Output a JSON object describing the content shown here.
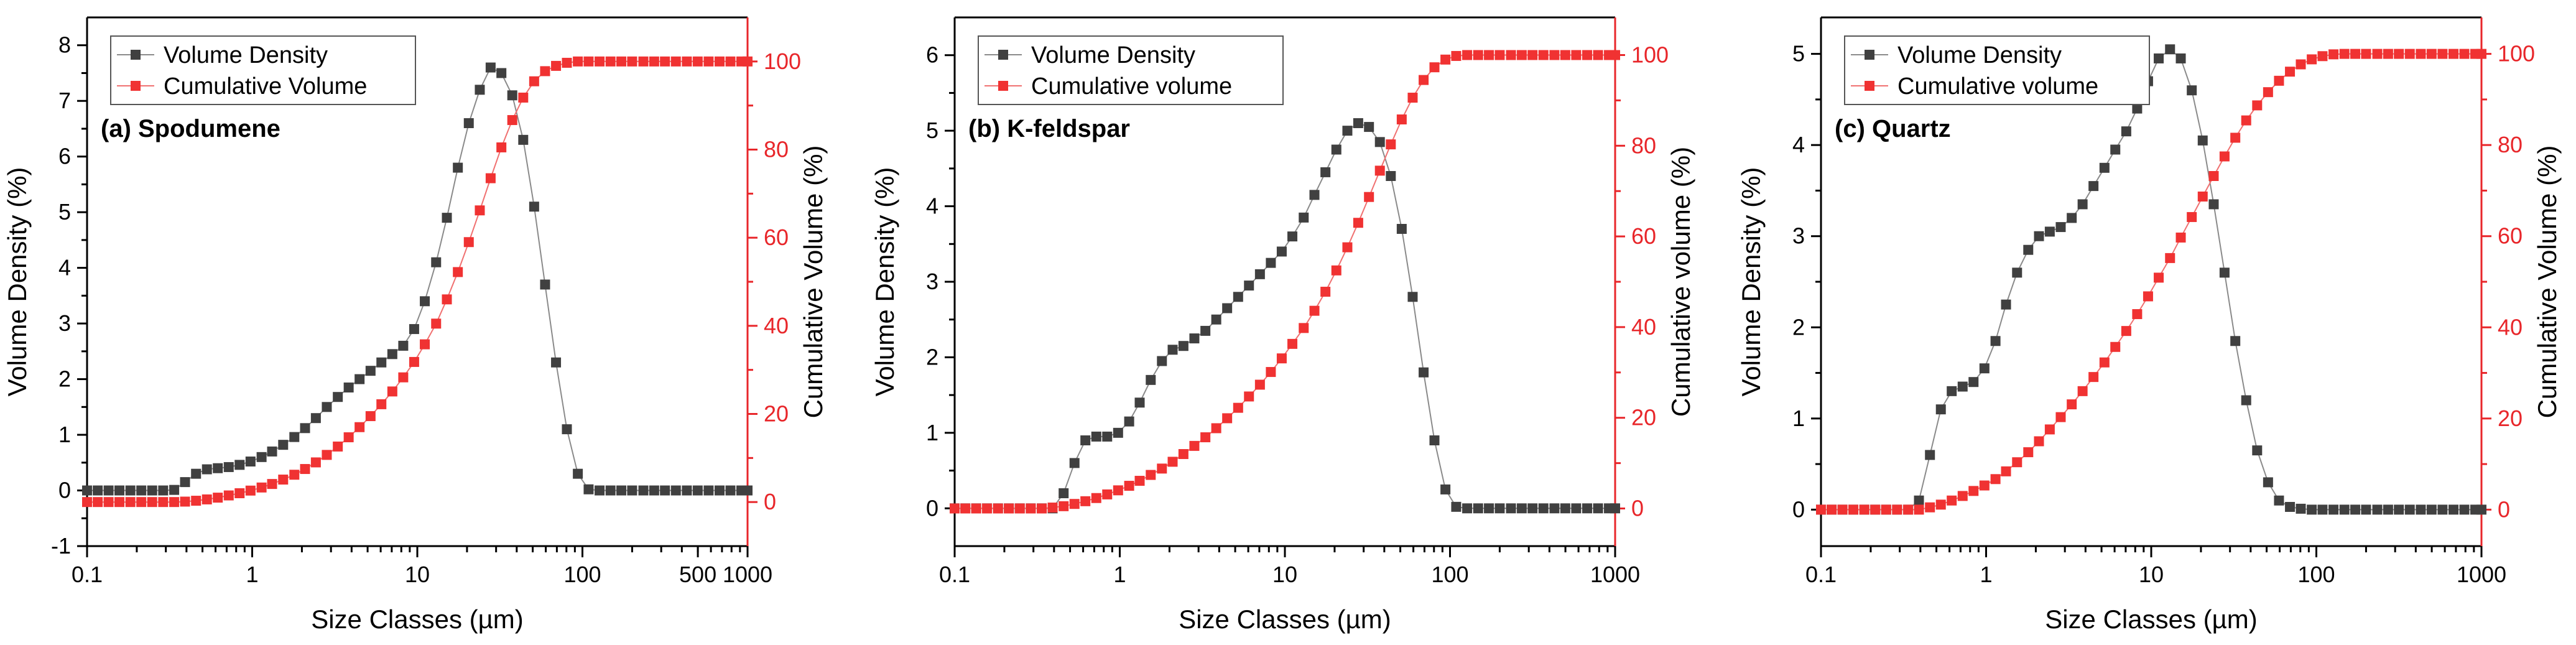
{
  "colors": {
    "density": "#404040",
    "cumulative": "#f03232",
    "axis": "#000000",
    "right_axis": "#e8262a"
  },
  "chart_data": [
    {
      "type": "scatter",
      "panel_label": "(a) Spodumene",
      "xlabel": "Size Classes (µm)",
      "ylabel": "Volume Density (%)",
      "y2label": "Cumulative Volume (%)",
      "xscale": "log",
      "xlim": [
        0.1,
        1000
      ],
      "ylim": [
        -1,
        8.5
      ],
      "y2lim": [
        -10,
        110
      ],
      "xticks": [
        0.1,
        1,
        10,
        100,
        500,
        1000
      ],
      "xtick_labels": [
        "0.1",
        "1",
        "10",
        "100",
        "500",
        "1000"
      ],
      "yticks": [
        -1,
        0,
        1,
        2,
        3,
        4,
        5,
        6,
        7,
        8
      ],
      "ytick_labels": [
        "-1",
        "0",
        "1",
        "2",
        "3",
        "4",
        "5",
        "6",
        "7",
        "8"
      ],
      "y2ticks": [
        0,
        20,
        40,
        60,
        80,
        100
      ],
      "y2tick_labels": [
        "0",
        "20",
        "40",
        "60",
        "80",
        "100"
      ],
      "legend": [
        "Volume Density",
        "Cumulative Volume"
      ],
      "series": [
        {
          "name": "Volume Density",
          "axis": "left",
          "x": [
            0.1,
            0.116,
            0.135,
            0.157,
            0.183,
            0.213,
            0.248,
            0.289,
            0.337,
            0.392,
            0.457,
            0.532,
            0.619,
            0.721,
            0.839,
            0.977,
            1.14,
            1.32,
            1.54,
            1.8,
            2.09,
            2.43,
            2.83,
            3.3,
            3.84,
            4.47,
            5.21,
            6.06,
            7.06,
            8.22,
            9.57,
            11.1,
            13,
            15.1,
            17.6,
            20.5,
            23.9,
            27.8,
            32.3,
            37.6,
            43.8,
            51,
            59.4,
            69.2,
            80.5,
            93.8,
            109,
            127,
            148,
            172,
            200,
            234,
            272,
            316,
            368,
            429,
            499,
            581,
            677,
            788,
            917,
            1000
          ],
          "values": [
            0,
            0,
            0,
            0,
            0,
            0,
            0,
            0,
            0.01,
            0.15,
            0.3,
            0.38,
            0.4,
            0.42,
            0.46,
            0.52,
            0.6,
            0.7,
            0.82,
            0.96,
            1.12,
            1.3,
            1.5,
            1.68,
            1.85,
            2,
            2.15,
            2.3,
            2.45,
            2.6,
            2.9,
            3.4,
            4.1,
            4.9,
            5.8,
            6.6,
            7.2,
            7.6,
            7.5,
            7.1,
            6.3,
            5.1,
            3.7,
            2.3,
            1.1,
            0.3,
            0.02,
            0,
            0,
            0,
            0,
            0,
            0,
            0,
            0,
            0,
            0,
            0,
            0,
            0,
            0,
            0
          ]
        },
        {
          "name": "Cumulative Volume",
          "axis": "right",
          "x": [
            0.1,
            0.116,
            0.135,
            0.157,
            0.183,
            0.213,
            0.248,
            0.289,
            0.337,
            0.392,
            0.457,
            0.532,
            0.619,
            0.721,
            0.839,
            0.977,
            1.14,
            1.32,
            1.54,
            1.8,
            2.09,
            2.43,
            2.83,
            3.3,
            3.84,
            4.47,
            5.21,
            6.06,
            7.06,
            8.22,
            9.57,
            11.1,
            13,
            15.1,
            17.6,
            20.5,
            23.9,
            27.8,
            32.3,
            37.6,
            43.8,
            51,
            59.4,
            69.2,
            80.5,
            93.8,
            109,
            127,
            148,
            172,
            200,
            234,
            272,
            316,
            368,
            429,
            499,
            581,
            677,
            788,
            917,
            1000
          ],
          "values": [
            0,
            0,
            0,
            0,
            0,
            0,
            0,
            0,
            0,
            0.1,
            0.3,
            0.6,
            1,
            1.5,
            2,
            2.6,
            3.3,
            4.1,
            5.1,
            6.2,
            7.5,
            9,
            10.7,
            12.6,
            14.7,
            17,
            19.5,
            22.2,
            25.1,
            28.3,
            31.8,
            35.8,
            40.5,
            46,
            52.2,
            59,
            66.2,
            73.5,
            80.5,
            86.7,
            91.8,
            95.5,
            97.8,
            99,
            99.7,
            100,
            100,
            100,
            100,
            100,
            100,
            100,
            100,
            100,
            100,
            100,
            100,
            100,
            100,
            100,
            100,
            100
          ]
        }
      ]
    },
    {
      "type": "scatter",
      "panel_label": "(b) K-feldspar",
      "xlabel": "Size Classes (µm)",
      "ylabel": "Volume Density (%)",
      "y2label": "Cumulative volume (%)",
      "xscale": "log",
      "xlim": [
        0.1,
        1000
      ],
      "ylim": [
        -0.5,
        6.5
      ],
      "y2lim": [
        -8.3,
        108.3
      ],
      "xticks": [
        0.1,
        1,
        10,
        100,
        1000
      ],
      "xtick_labels": [
        "0.1",
        "1",
        "10",
        "100",
        "1000"
      ],
      "yticks": [
        0,
        1,
        2,
        3,
        4,
        5,
        6
      ],
      "ytick_labels": [
        "0",
        "1",
        "2",
        "3",
        "4",
        "5",
        "6"
      ],
      "y2ticks": [
        0,
        20,
        40,
        60,
        80,
        100
      ],
      "y2tick_labels": [
        "0",
        "20",
        "40",
        "60",
        "80",
        "100"
      ],
      "legend": [
        "Volume Density",
        "Cumulative volume"
      ],
      "series": [
        {
          "name": "Volume Density",
          "axis": "left",
          "x": [
            0.1,
            0.116,
            0.135,
            0.157,
            0.183,
            0.213,
            0.248,
            0.289,
            0.337,
            0.392,
            0.457,
            0.532,
            0.619,
            0.721,
            0.839,
            0.977,
            1.14,
            1.32,
            1.54,
            1.8,
            2.09,
            2.43,
            2.83,
            3.3,
            3.84,
            4.47,
            5.21,
            6.06,
            7.06,
            8.22,
            9.57,
            11.1,
            13,
            15.1,
            17.6,
            20.5,
            23.9,
            27.8,
            32.3,
            37.6,
            43.8,
            51,
            59.4,
            69.2,
            80.5,
            93.8,
            109,
            127,
            148,
            172,
            200,
            234,
            272,
            316,
            368,
            429,
            499,
            581,
            677,
            788,
            917,
            1000
          ],
          "values": [
            0,
            0,
            0,
            0,
            0,
            0,
            0,
            0,
            0,
            0,
            0.2,
            0.6,
            0.9,
            0.95,
            0.95,
            1,
            1.15,
            1.4,
            1.7,
            1.95,
            2.1,
            2.15,
            2.25,
            2.35,
            2.5,
            2.65,
            2.8,
            2.95,
            3.1,
            3.25,
            3.4,
            3.6,
            3.85,
            4.15,
            4.45,
            4.75,
            5.0,
            5.1,
            5.05,
            4.85,
            4.4,
            3.7,
            2.8,
            1.8,
            0.9,
            0.25,
            0.02,
            0,
            0,
            0,
            0,
            0,
            0,
            0,
            0,
            0,
            0,
            0,
            0,
            0,
            0,
            0
          ]
        },
        {
          "name": "Cumulative volume",
          "axis": "right",
          "x": [
            0.1,
            0.116,
            0.135,
            0.157,
            0.183,
            0.213,
            0.248,
            0.289,
            0.337,
            0.392,
            0.457,
            0.532,
            0.619,
            0.721,
            0.839,
            0.977,
            1.14,
            1.32,
            1.54,
            1.8,
            2.09,
            2.43,
            2.83,
            3.3,
            3.84,
            4.47,
            5.21,
            6.06,
            7.06,
            8.22,
            9.57,
            11.1,
            13,
            15.1,
            17.6,
            20.5,
            23.9,
            27.8,
            32.3,
            37.6,
            43.8,
            51,
            59.4,
            69.2,
            80.5,
            93.8,
            109,
            127,
            148,
            172,
            200,
            234,
            272,
            316,
            368,
            429,
            499,
            581,
            677,
            788,
            917,
            1000
          ],
          "values": [
            0,
            0,
            0,
            0,
            0,
            0,
            0,
            0,
            0,
            0.2,
            0.5,
            1,
            1.6,
            2.3,
            3.1,
            4,
            5,
            6.1,
            7.4,
            8.8,
            10.3,
            12,
            13.8,
            15.7,
            17.7,
            19.9,
            22.2,
            24.7,
            27.3,
            30.1,
            33.1,
            36.3,
            39.8,
            43.6,
            47.8,
            52.5,
            57.6,
            63,
            68.7,
            74.5,
            80.3,
            85.8,
            90.6,
            94.5,
            97.3,
            99,
            99.8,
            100,
            100,
            100,
            100,
            100,
            100,
            100,
            100,
            100,
            100,
            100,
            100,
            100,
            100,
            100
          ]
        }
      ]
    },
    {
      "type": "scatter",
      "panel_label": "(c) Quartz",
      "xlabel": "Size Classes (µm)",
      "ylabel": "Volume Density (%)",
      "y2label": "Cumulative Volume (%)",
      "xscale": "log",
      "xlim": [
        0.1,
        1000
      ],
      "ylim": [
        -0.4,
        5.4
      ],
      "y2lim": [
        -8.0,
        108.0
      ],
      "xticks": [
        0.1,
        1,
        10,
        100,
        1000
      ],
      "xtick_labels": [
        "0.1",
        "1",
        "10",
        "100",
        "1000"
      ],
      "yticks": [
        0,
        1,
        2,
        3,
        4,
        5
      ],
      "ytick_labels": [
        "0",
        "1",
        "2",
        "3",
        "4",
        "5"
      ],
      "y2ticks": [
        0,
        20,
        40,
        60,
        80,
        100
      ],
      "y2tick_labels": [
        "0",
        "20",
        "40",
        "60",
        "80",
        "100"
      ],
      "legend": [
        "Volume Density",
        "Cumulative volume"
      ],
      "series": [
        {
          "name": "Volume Density",
          "axis": "left",
          "x": [
            0.1,
            0.116,
            0.135,
            0.157,
            0.183,
            0.213,
            0.248,
            0.289,
            0.337,
            0.392,
            0.457,
            0.532,
            0.619,
            0.721,
            0.839,
            0.977,
            1.14,
            1.32,
            1.54,
            1.8,
            2.09,
            2.43,
            2.83,
            3.3,
            3.84,
            4.47,
            5.21,
            6.06,
            7.06,
            8.22,
            9.57,
            11.1,
            13,
            15.1,
            17.6,
            20.5,
            23.9,
            27.8,
            32.3,
            37.6,
            43.8,
            51,
            59.4,
            69.2,
            80.5,
            93.8,
            109,
            127,
            148,
            172,
            200,
            234,
            272,
            316,
            368,
            429,
            499,
            581,
            677,
            788,
            917,
            1000
          ],
          "values": [
            0,
            0,
            0,
            0,
            0,
            0,
            0,
            0,
            0,
            0.1,
            0.6,
            1.1,
            1.3,
            1.35,
            1.4,
            1.55,
            1.85,
            2.25,
            2.6,
            2.85,
            3.0,
            3.05,
            3.1,
            3.2,
            3.35,
            3.55,
            3.75,
            3.95,
            4.15,
            4.4,
            4.7,
            4.95,
            5.05,
            4.95,
            4.6,
            4.05,
            3.35,
            2.6,
            1.85,
            1.2,
            0.65,
            0.3,
            0.1,
            0.03,
            0.01,
            0,
            0,
            0,
            0,
            0,
            0,
            0,
            0,
            0,
            0,
            0,
            0,
            0,
            0,
            0,
            0,
            0
          ]
        },
        {
          "name": "Cumulative volume",
          "axis": "right",
          "x": [
            0.1,
            0.116,
            0.135,
            0.157,
            0.183,
            0.213,
            0.248,
            0.289,
            0.337,
            0.392,
            0.457,
            0.532,
            0.619,
            0.721,
            0.839,
            0.977,
            1.14,
            1.32,
            1.54,
            1.8,
            2.09,
            2.43,
            2.83,
            3.3,
            3.84,
            4.47,
            5.21,
            6.06,
            7.06,
            8.22,
            9.57,
            11.1,
            13,
            15.1,
            17.6,
            20.5,
            23.9,
            27.8,
            32.3,
            37.6,
            43.8,
            51,
            59.4,
            69.2,
            80.5,
            93.8,
            109,
            127,
            148,
            172,
            200,
            234,
            272,
            316,
            368,
            429,
            499,
            581,
            677,
            788,
            917,
            1000
          ],
          "values": [
            0,
            0,
            0,
            0,
            0,
            0,
            0,
            0,
            0,
            0,
            0.5,
            1.1,
            2,
            3,
            4.1,
            5.3,
            6.7,
            8.4,
            10.4,
            12.6,
            15,
            17.6,
            20.3,
            23.1,
            26,
            29.1,
            32.3,
            35.7,
            39.2,
            42.9,
            46.8,
            50.9,
            55.2,
            59.7,
            64.2,
            68.7,
            73.2,
            77.5,
            81.6,
            85.4,
            88.7,
            91.6,
            94.1,
            96.1,
            97.7,
            98.8,
            99.5,
            99.9,
            100,
            100,
            100,
            100,
            100,
            100,
            100,
            100,
            100,
            100,
            100,
            100,
            100,
            100
          ]
        }
      ]
    }
  ]
}
